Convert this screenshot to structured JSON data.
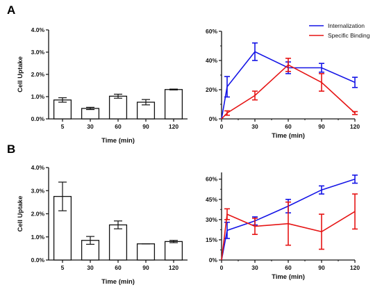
{
  "panels": [
    {
      "letter": "A"
    },
    {
      "letter": "B"
    }
  ],
  "chart_data": [
    {
      "type": "bar",
      "panel": "A",
      "title": "",
      "xlabel": "Time (min)",
      "ylabel": "Cell Uptake",
      "categories": [
        "5",
        "30",
        "60",
        "90",
        "120"
      ],
      "values": [
        0.85,
        0.47,
        1.02,
        0.75,
        1.32
      ],
      "errors": [
        0.1,
        0.05,
        0.09,
        0.12,
        0.02
      ],
      "ylim": [
        0,
        4.0
      ],
      "yticks": [
        "0.0%",
        "1.0%",
        "2.0%",
        "3.0%",
        "4.0%"
      ],
      "bar_color": "#ffffff",
      "edge_color": "#111111"
    },
    {
      "type": "line",
      "panel": "A",
      "title": "",
      "xlabel": "Time (min)",
      "ylabel": "",
      "xlim": [
        0,
        120
      ],
      "ylim": [
        0,
        60
      ],
      "xticks": [
        "0",
        "30",
        "60",
        "90",
        "120"
      ],
      "yticks": [
        "0%",
        "20%",
        "40%",
        "60%"
      ],
      "legend_position": "top-right",
      "series": [
        {
          "name": "Internalization",
          "color": "#1414e6",
          "x": [
            0,
            5,
            30,
            60,
            90,
            120
          ],
          "y": [
            0,
            22,
            46,
            35,
            35,
            25
          ],
          "err": [
            0,
            7,
            6,
            4,
            3,
            3.5
          ]
        },
        {
          "name": "Specific Binding",
          "color": "#e61414",
          "x": [
            0,
            5,
            30,
            60,
            90,
            120
          ],
          "y": [
            0,
            4,
            16,
            37,
            25,
            4
          ],
          "err": [
            0,
            1.5,
            3,
            4.5,
            6,
            1
          ]
        }
      ]
    },
    {
      "type": "bar",
      "panel": "B",
      "title": "",
      "xlabel": "Time (min)",
      "ylabel": "Cell Uptake",
      "categories": [
        "5",
        "30",
        "60",
        "90",
        "120"
      ],
      "values": [
        2.75,
        0.85,
        1.52,
        0.7,
        0.8
      ],
      "errors": [
        0.62,
        0.17,
        0.17,
        0.0,
        0.05
      ],
      "ylim": [
        0,
        4.0
      ],
      "yticks": [
        "0.0%",
        "1.0%",
        "2.0%",
        "3.0%",
        "4.0%"
      ],
      "bar_color": "#ffffff",
      "edge_color": "#111111"
    },
    {
      "type": "line",
      "panel": "B",
      "title": "",
      "xlabel": "Time (min)",
      "ylabel": "",
      "xlim": [
        0,
        120
      ],
      "ylim": [
        0,
        65
      ],
      "xticks": [
        "0",
        "30",
        "60",
        "90",
        "120"
      ],
      "yticks": [
        "0%",
        "15%",
        "30%",
        "45%",
        "60%"
      ],
      "legend_position": "none",
      "series": [
        {
          "name": "Internalization",
          "color": "#1414e6",
          "x": [
            0,
            5,
            30,
            60,
            90,
            120
          ],
          "y": [
            0,
            22,
            29,
            40,
            52,
            60
          ],
          "err": [
            0,
            6,
            3,
            5,
            3,
            3
          ]
        },
        {
          "name": "Specific Binding",
          "color": "#e61414",
          "x": [
            0,
            5,
            30,
            60,
            90,
            120
          ],
          "y": [
            0,
            34,
            25,
            27,
            21,
            36
          ],
          "err": [
            0,
            4,
            6,
            16,
            13,
            13
          ]
        }
      ]
    }
  ]
}
